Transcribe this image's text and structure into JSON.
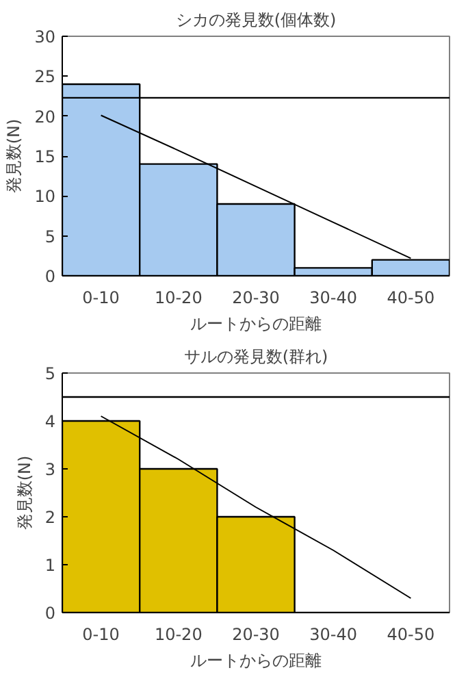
{
  "chart_data": [
    {
      "type": "bar",
      "title": "シカの発見数(個体数)",
      "xlabel": "ルートからの距離",
      "ylabel": "発見数(N)",
      "categories": [
        "0-10",
        "10-20",
        "20-30",
        "30-40",
        "40-50"
      ],
      "series": [
        {
          "color": "#a6caf0",
          "values": [
            24,
            14,
            9,
            1,
            2
          ]
        },
        {
          "type": "line",
          "color": "#000000",
          "x": [
            "0-10",
            "10-20",
            "20-30",
            "30-40",
            "40-50"
          ],
          "values": [
            20.1,
            15.7,
            11.2,
            6.7,
            2.2
          ]
        }
      ],
      "ylim": [
        0,
        30
      ],
      "yticks": [
        0,
        5,
        10,
        15,
        20,
        25,
        30
      ],
      "ref_lines": [
        {
          "axis": "y",
          "value": 22.3,
          "color": "#000000"
        }
      ],
      "grid": false
    },
    {
      "type": "bar",
      "title": "サルの発見数(群れ)",
      "xlabel": "ルートからの距離",
      "ylabel": "発見数(N)",
      "categories": [
        "0-10",
        "10-20",
        "20-30",
        "30-40",
        "40-50"
      ],
      "series": [
        {
          "color": "#e0c000",
          "values": [
            4,
            3,
            2,
            0,
            0
          ]
        },
        {
          "type": "line",
          "color": "#000000",
          "x": [
            "0-10",
            "10-20",
            "20-30",
            "30-40",
            "40-50"
          ],
          "values": [
            4.1,
            3.2,
            2.2,
            1.3,
            0.3
          ]
        }
      ],
      "ylim": [
        0,
        5
      ],
      "yticks": [
        0,
        1,
        2,
        3,
        4,
        5
      ],
      "ref_lines": [
        {
          "axis": "y",
          "value": 4.5,
          "color": "#000000"
        }
      ],
      "grid": false
    }
  ]
}
